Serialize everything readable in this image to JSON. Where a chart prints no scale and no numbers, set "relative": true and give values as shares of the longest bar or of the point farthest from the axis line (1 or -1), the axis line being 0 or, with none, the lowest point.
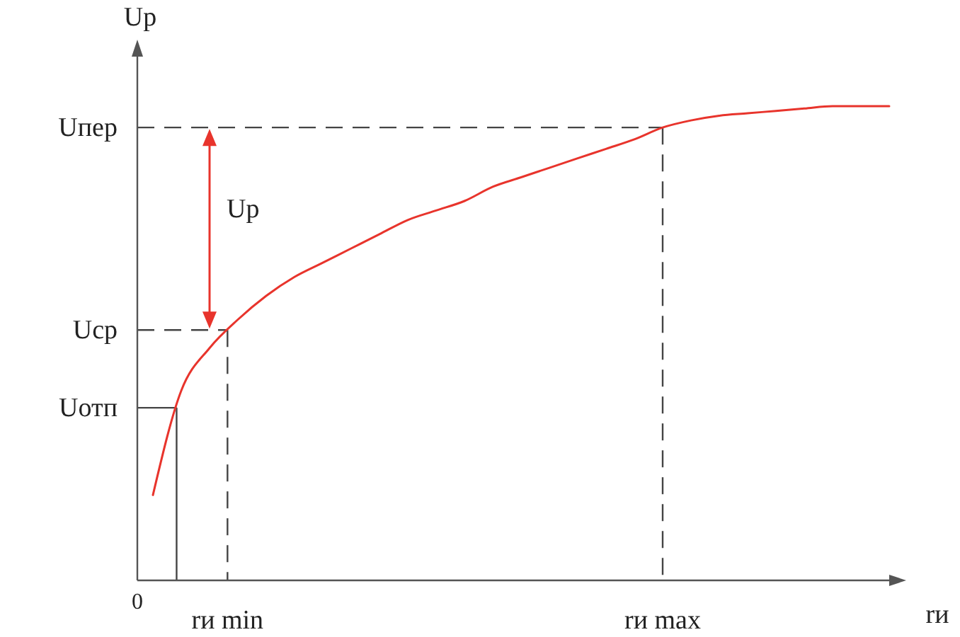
{
  "chart_data": {
    "type": "line",
    "relative": true,
    "xlabel": "rи",
    "ylabel": "Uр",
    "categories": [
      null,
      null,
      null,
      null,
      null,
      null,
      null,
      null,
      null,
      null,
      null,
      null,
      null,
      null,
      null,
      null,
      null,
      null,
      null,
      null,
      null,
      null,
      null,
      null,
      null,
      null,
      null
    ],
    "series": [
      {
        "color": "#e8342c",
        "values": [
          0.18,
          0.4,
          0.49,
          0.55,
          0.6,
          0.64,
          0.67,
          0.7,
          0.73,
          0.76,
          0.78,
          0.8,
          0.83,
          0.85,
          0.87,
          0.89,
          0.91,
          0.93,
          0.955,
          0.97,
          0.98,
          0.985,
          0.99,
          0.995,
          1,
          1,
          1
        ]
      }
    ],
    "ref_lines": [
      {
        "axis": "y",
        "value": 0.364,
        "label": "Uотп",
        "line_style": "solid"
      },
      {
        "axis": "y",
        "value": 0.528,
        "label": "Uср",
        "line_style": "dashed"
      },
      {
        "axis": "y",
        "value": 0.955,
        "label": "Uпер",
        "line_style": "dashed"
      }
    ],
    "annotations": [
      "0",
      "Uр",
      "rи min",
      "rи max"
    ]
  }
}
